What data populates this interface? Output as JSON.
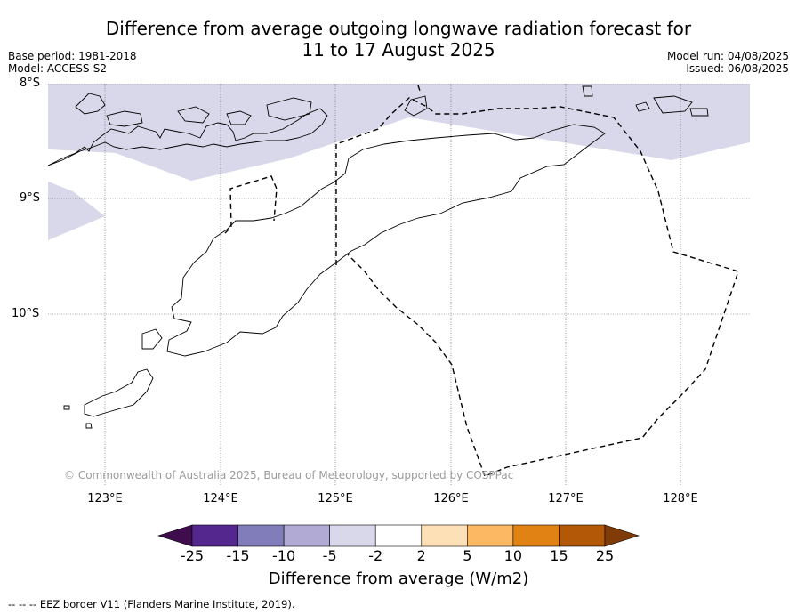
{
  "title": {
    "line1": "Difference from average outgoing longwave radiation forecast for",
    "line2": "11 to 17 August 2025"
  },
  "meta": {
    "base_period": "Base period: 1981-2018",
    "model": "Model: ACCESS-S2",
    "model_run": "Model run: 04/08/2025",
    "issued": "Issued: 06/08/2025"
  },
  "map": {
    "lat_labels": [
      "8°S",
      "9°S",
      "10°S"
    ],
    "lon_labels": [
      "123°E",
      "124°E",
      "125°E",
      "126°E",
      "127°E",
      "128°E"
    ],
    "copyright": "© Commonwealth of Australia 2025, Bureau of Meteorology, supported by COSPPac",
    "anomaly_fill_color": "#d8d8ea",
    "gridlines": true
  },
  "colorbar": {
    "ticks": [
      "-25",
      "-15",
      "-10",
      "-5",
      "-2",
      "2",
      "5",
      "10",
      "15",
      "25"
    ],
    "colors": [
      "#3f0d4e",
      "#54278f",
      "#807dba",
      "#b0aad4",
      "#d8d8ea",
      "#ffffff",
      "#fee0b6",
      "#fdb863",
      "#e08214",
      "#b35806",
      "#7f3b08"
    ],
    "label": "Difference from average (W/m2)"
  },
  "legend": {
    "eez": "--  --  -- EEZ border V11 (Flanders Marine Institute, 2019)."
  }
}
